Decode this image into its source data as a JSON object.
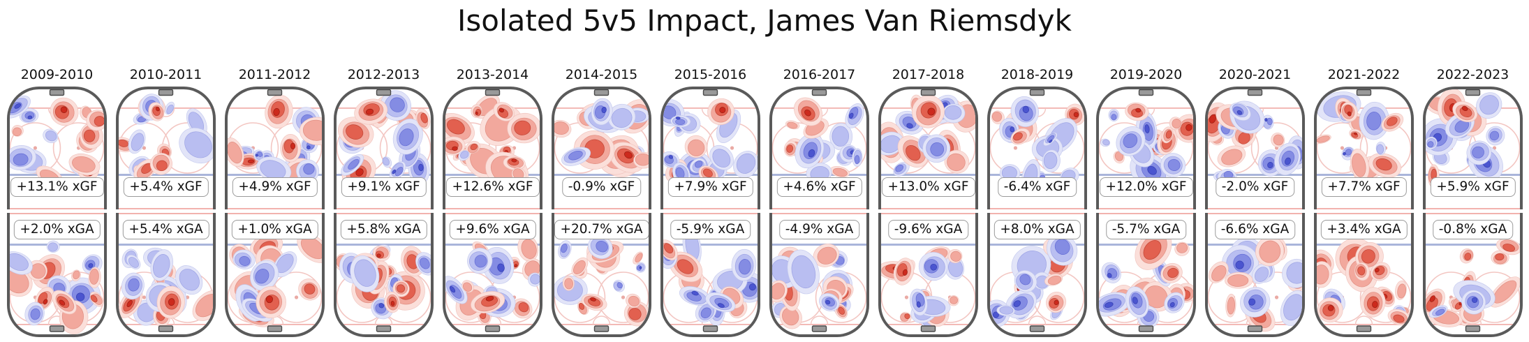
{
  "title": "Isolated 5v5 Impact, James Van Riemsdyk",
  "chart_data": {
    "type": "heatmap",
    "subtype": "half-rink KDE contour maps, one column per season, offense (xGF) top row and defense (xGA) bottom row",
    "legend": "none",
    "grid": false,
    "seasons": [
      "2009-2010",
      "2010-2011",
      "2011-2012",
      "2012-2013",
      "2013-2014",
      "2014-2015",
      "2015-2016",
      "2016-2017",
      "2017-2018",
      "2018-2019",
      "2019-2020",
      "2020-2021",
      "2021-2022",
      "2022-2023"
    ],
    "series": [
      {
        "name": "xGF",
        "values": [
          13.1,
          5.4,
          4.9,
          9.1,
          12.6,
          -0.9,
          7.9,
          4.6,
          13.0,
          -6.4,
          12.0,
          -2.0,
          7.7,
          5.9
        ]
      },
      {
        "name": "xGA",
        "values": [
          2.0,
          5.4,
          1.0,
          5.8,
          9.6,
          20.7,
          -5.9,
          -4.9,
          -9.6,
          8.0,
          -5.7,
          -6.6,
          3.4,
          -0.8
        ]
      }
    ],
    "xgf_labels": [
      "+13.1% xGF",
      "+5.4% xGF",
      "+4.9% xGF",
      "+9.1% xGF",
      "+12.6% xGF",
      "-0.9% xGF",
      "+7.9% xGF",
      "+4.6% xGF",
      "+13.0% xGF",
      "-6.4% xGF",
      "+12.0% xGF",
      "-2.0% xGF",
      "+7.7% xGF",
      "+5.9% xGF"
    ],
    "xga_labels": [
      "+2.0% xGA",
      "+5.4% xGA",
      "+1.0% xGA",
      "+5.8% xGA",
      "+9.6% xGA",
      "+20.7% xGA",
      "-5.9% xGA",
      "-4.9% xGA",
      "-9.6% xGA",
      "+8.0% xGA",
      "-5.7% xGA",
      "-6.6% xGA",
      "+3.4% xGA",
      "-0.8% xGA"
    ],
    "colors": {
      "hot_core": "#cc2a1d",
      "hot_light": "#fbdfda",
      "cold_core": "#4b55cf",
      "cold_light": "#e2e4f8",
      "rink_border": "#5a5a5a",
      "blue_line": "#a9b5da",
      "red_line": "#f2b2ae",
      "faceoff_circle": "#f3c6c2",
      "net": "#9a9a9a"
    }
  }
}
